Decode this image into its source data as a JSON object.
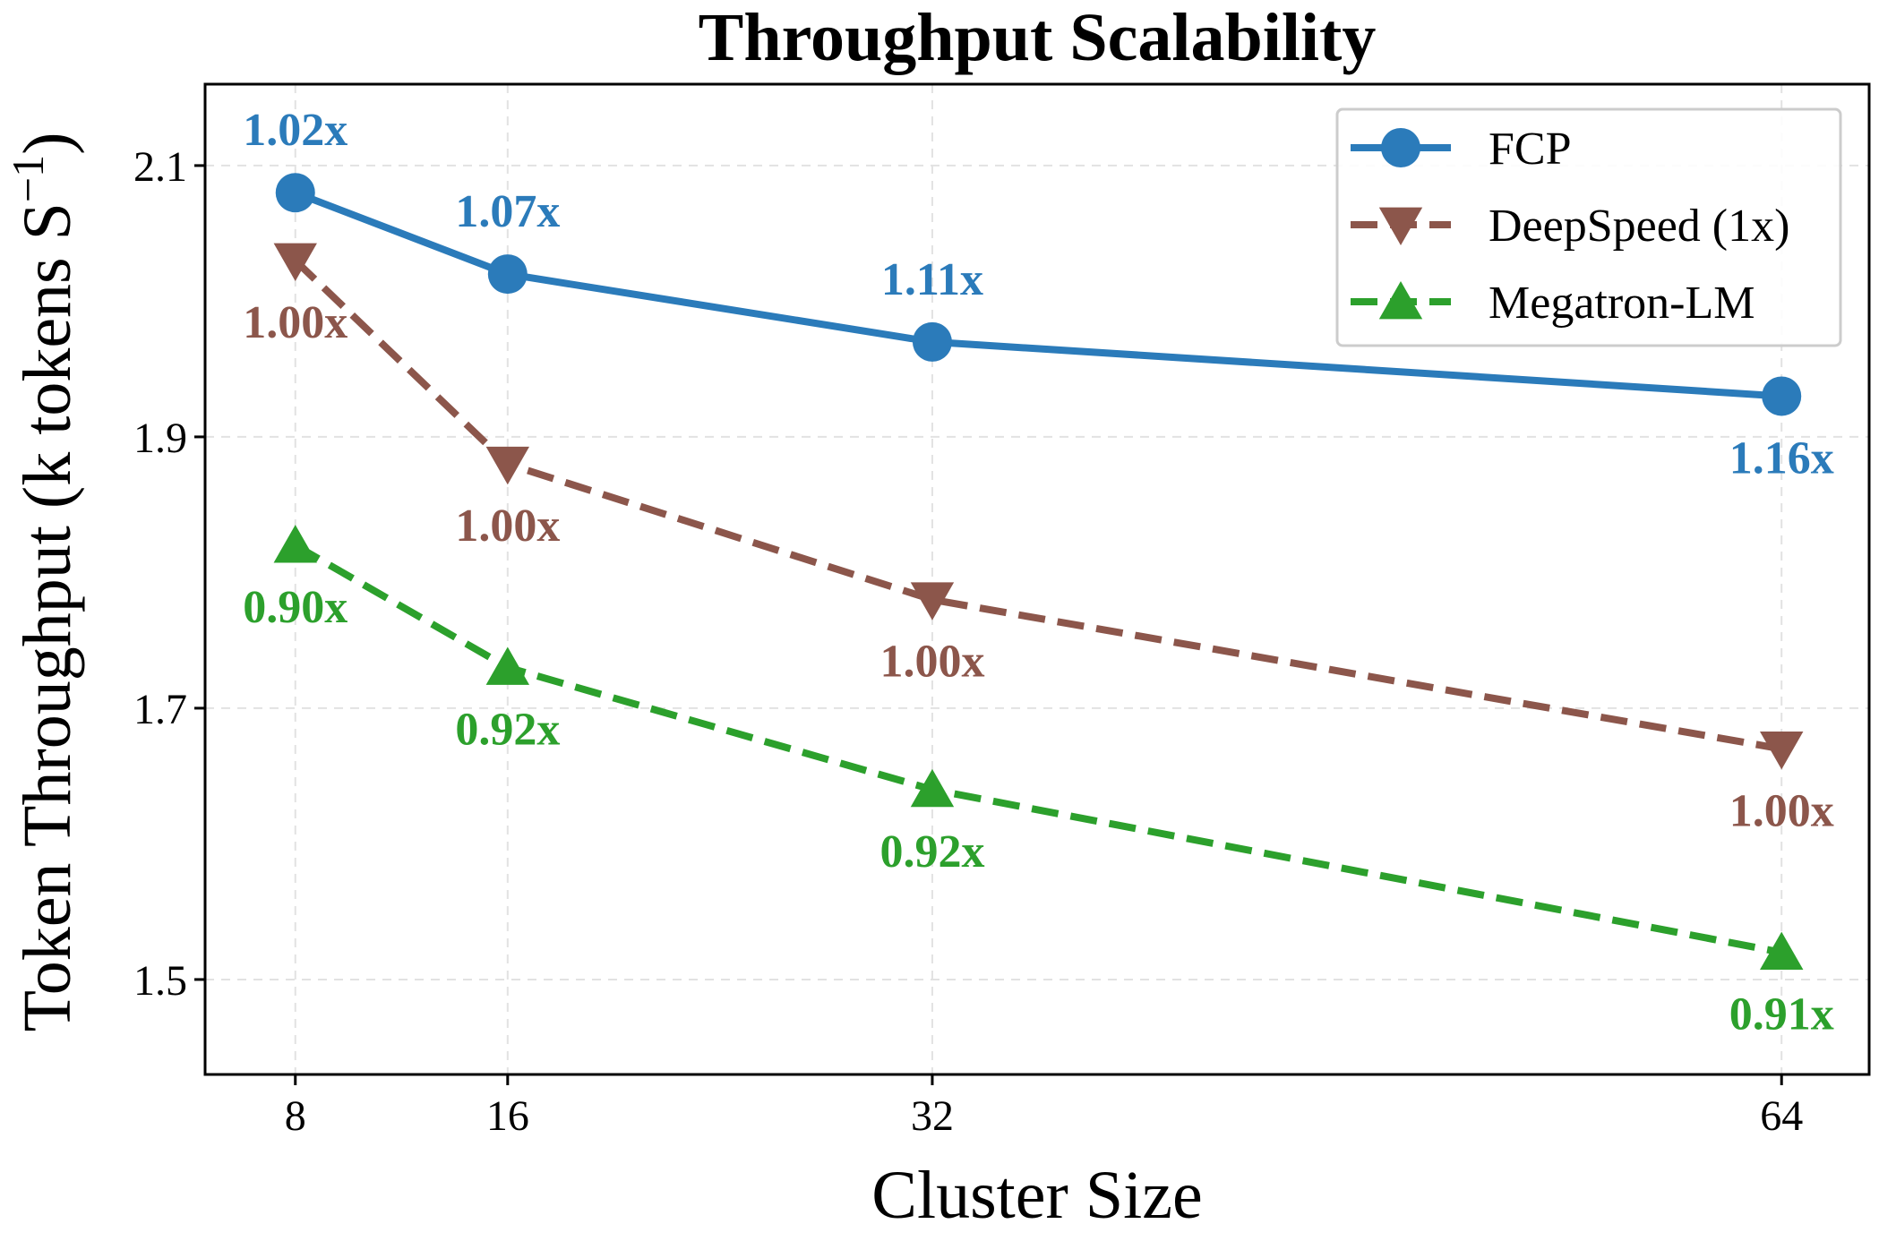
{
  "chart_data": {
    "type": "line",
    "title": "Throughput Scalability",
    "xlabel": "Cluster Size",
    "ylabel": "Token Throughput (k tokens S",
    "ylabel_superscript": "−1",
    "ylabel_close": ")",
    "x": [
      8,
      16,
      32,
      64
    ],
    "x_tick_labels": [
      "8",
      "16",
      "32",
      "64"
    ],
    "xlim": [
      4.6,
      67.3
    ],
    "ylim": [
      1.43,
      2.16
    ],
    "y_ticks": [
      1.5,
      1.7,
      1.9,
      2.1
    ],
    "y_tick_labels": [
      "1.5",
      "1.7",
      "1.9",
      "2.1"
    ],
    "grid": true,
    "legend_position": "top-right",
    "series": [
      {
        "name": "FCP",
        "values": [
          2.08,
          2.02,
          1.97,
          1.93
        ],
        "labels": [
          "1.02x",
          "1.07x",
          "1.11x",
          "1.16x"
        ],
        "label_position": [
          "above",
          "above",
          "above",
          "below"
        ],
        "color": "#2b7bba",
        "marker": "circle",
        "line_style": "solid"
      },
      {
        "name": "DeepSpeed (1x)",
        "values": [
          2.03,
          1.88,
          1.78,
          1.67
        ],
        "labels": [
          "1.00x",
          "1.00x",
          "1.00x",
          "1.00x"
        ],
        "label_position": [
          "below",
          "below",
          "below",
          "below"
        ],
        "color": "#8c564b",
        "marker": "triangle-down",
        "line_style": "dashed"
      },
      {
        "name": "Megatron-LM",
        "values": [
          1.82,
          1.73,
          1.64,
          1.52
        ],
        "labels": [
          "0.90x",
          "0.92x",
          "0.92x",
          "0.91x"
        ],
        "label_position": [
          "below",
          "below",
          "below",
          "below"
        ],
        "color": "#2ca02c",
        "marker": "triangle-up",
        "line_style": "dashed"
      }
    ]
  }
}
